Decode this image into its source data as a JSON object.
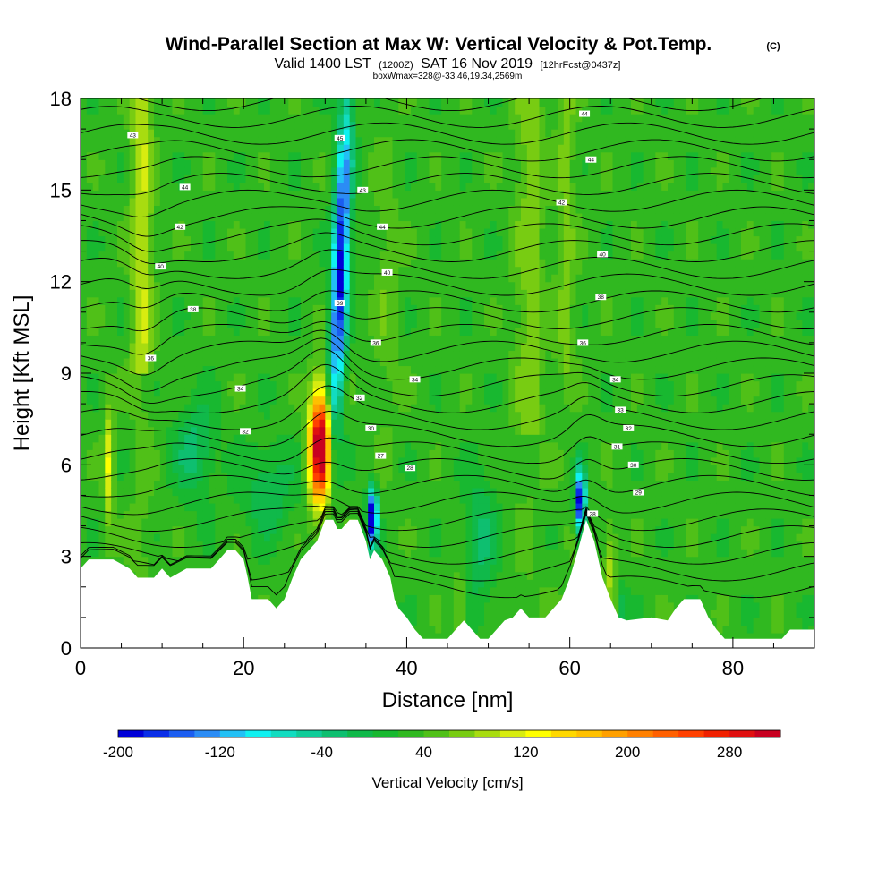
{
  "chart_data": {
    "type": "heatmap",
    "title": "Wind-Parallel Section at Max W: Vertical Velocity & Pot.Temp.",
    "title_mark": "(C)",
    "subtitle_pre": "Valid 1400 LST",
    "subtitle_utc": "(1200Z)",
    "subtitle_date": "SAT 16 Nov 2019",
    "subtitle_fcst": "[12hrFcst@0437z]",
    "subtitle2": "boxWmax=328@-33.46,19.34,2569m",
    "xlabel": "Distance [nm]",
    "ylabel": "Height [Kft MSL]",
    "xlim": [
      0,
      90
    ],
    "ylim": [
      0,
      18
    ],
    "xticks": [
      0,
      20,
      40,
      60,
      80
    ],
    "yticks": [
      0,
      3,
      6,
      9,
      12,
      15,
      18
    ],
    "colorbar": {
      "label": "Vertical Velocity [cm/s]",
      "min": -200,
      "max": 320,
      "step": 20,
      "ticks": [
        -200,
        -120,
        -40,
        40,
        120,
        200,
        280
      ],
      "colors": [
        "#0000d8",
        "#0a2ee8",
        "#1b5df0",
        "#2b8cf5",
        "#22c0f5",
        "#10f0f0",
        "#12dcc0",
        "#10cc99",
        "#0ebf70",
        "#10b94a",
        "#18b830",
        "#30b820",
        "#50c018",
        "#78cc12",
        "#a8dc10",
        "#d8ec10",
        "#ffff00",
        "#ffd800",
        "#ffc000",
        "#ffa000",
        "#ff8000",
        "#ff6000",
        "#ff4000",
        "#f02000",
        "#e01010",
        "#c80020"
      ]
    },
    "terrain_kft": [
      [
        0,
        2.6
      ],
      [
        1,
        2.9
      ],
      [
        4,
        2.9
      ],
      [
        6,
        2.6
      ],
      [
        7,
        2.3
      ],
      [
        9,
        2.3
      ],
      [
        10,
        2.6
      ],
      [
        11,
        2.3
      ],
      [
        13,
        2.6
      ],
      [
        15,
        2.6
      ],
      [
        16,
        2.6
      ],
      [
        17,
        2.9
      ],
      [
        18,
        3.2
      ],
      [
        19,
        3.2
      ],
      [
        20,
        2.9
      ],
      [
        20.5,
        2.3
      ],
      [
        21,
        1.6
      ],
      [
        23,
        1.6
      ],
      [
        24,
        1.3
      ],
      [
        25,
        1.6
      ],
      [
        26,
        2.3
      ],
      [
        27,
        2.9
      ],
      [
        28,
        3.2
      ],
      [
        29,
        3.5
      ],
      [
        30,
        4.2
      ],
      [
        31,
        4.2
      ],
      [
        31.5,
        3.9
      ],
      [
        32,
        3.9
      ],
      [
        33,
        4.2
      ],
      [
        34,
        4.2
      ],
      [
        35,
        3.5
      ],
      [
        35.5,
        2.9
      ],
      [
        36,
        3.2
      ],
      [
        37,
        2.9
      ],
      [
        38,
        2.3
      ],
      [
        38.5,
        1.6
      ],
      [
        39,
        1.3
      ],
      [
        40,
        1.0
      ],
      [
        41,
        0.6
      ],
      [
        42,
        0.3
      ],
      [
        45,
        0.3
      ],
      [
        46,
        0.6
      ],
      [
        47,
        0.9
      ],
      [
        48,
        0.6
      ],
      [
        49,
        0.3
      ],
      [
        50,
        0.3
      ],
      [
        51,
        0.6
      ],
      [
        52,
        0.9
      ],
      [
        53,
        1.0
      ],
      [
        54,
        1.3
      ],
      [
        55,
        1.0
      ],
      [
        57,
        1.0
      ],
      [
        58,
        1.3
      ],
      [
        59,
        1.6
      ],
      [
        60,
        2.3
      ],
      [
        61,
        3.2
      ],
      [
        62,
        4.2
      ],
      [
        63,
        3.5
      ],
      [
        64,
        2.3
      ],
      [
        65,
        1.6
      ],
      [
        66,
        1.0
      ],
      [
        67,
        0.9
      ],
      [
        70,
        1.0
      ],
      [
        72,
        0.9
      ],
      [
        73,
        1.3
      ],
      [
        74,
        1.6
      ],
      [
        76,
        1.6
      ],
      [
        77,
        1.0
      ],
      [
        78,
        0.6
      ],
      [
        79,
        0.3
      ],
      [
        86,
        0.3
      ],
      [
        87,
        0.6
      ],
      [
        90,
        0.6
      ]
    ],
    "theta_labels": [
      {
        "x": 6.4,
        "y": 16.8,
        "text": "43"
      },
      {
        "x": 12.8,
        "y": 15.1,
        "text": "44"
      },
      {
        "x": 12.2,
        "y": 13.8,
        "text": "42"
      },
      {
        "x": 9.8,
        "y": 12.5,
        "text": "40"
      },
      {
        "x": 13.8,
        "y": 11.1,
        "text": "38"
      },
      {
        "x": 8.6,
        "y": 9.5,
        "text": "36"
      },
      {
        "x": 19.6,
        "y": 8.5,
        "text": "34"
      },
      {
        "x": 20.2,
        "y": 7.1,
        "text": "32"
      },
      {
        "x": 31.8,
        "y": 16.7,
        "text": "45"
      },
      {
        "x": 34.6,
        "y": 15.0,
        "text": "43"
      },
      {
        "x": 37.0,
        "y": 13.8,
        "text": "44"
      },
      {
        "x": 37.6,
        "y": 12.3,
        "text": "40"
      },
      {
        "x": 31.8,
        "y": 11.3,
        "text": "39"
      },
      {
        "x": 36.2,
        "y": 10.0,
        "text": "36"
      },
      {
        "x": 41.0,
        "y": 8.8,
        "text": "34"
      },
      {
        "x": 34.2,
        "y": 8.2,
        "text": "32"
      },
      {
        "x": 35.6,
        "y": 7.2,
        "text": "30"
      },
      {
        "x": 36.8,
        "y": 6.3,
        "text": "27"
      },
      {
        "x": 40.4,
        "y": 5.9,
        "text": "28"
      },
      {
        "x": 61.8,
        "y": 17.5,
        "text": "44"
      },
      {
        "x": 62.6,
        "y": 16.0,
        "text": "44"
      },
      {
        "x": 59.0,
        "y": 14.6,
        "text": "42"
      },
      {
        "x": 64.0,
        "y": 12.9,
        "text": "40"
      },
      {
        "x": 63.8,
        "y": 11.5,
        "text": "38"
      },
      {
        "x": 61.6,
        "y": 10.0,
        "text": "36"
      },
      {
        "x": 65.6,
        "y": 8.8,
        "text": "34"
      },
      {
        "x": 66.2,
        "y": 7.8,
        "text": "33"
      },
      {
        "x": 67.2,
        "y": 7.2,
        "text": "32"
      },
      {
        "x": 65.8,
        "y": 6.6,
        "text": "31"
      },
      {
        "x": 67.8,
        "y": 6.0,
        "text": "30"
      },
      {
        "x": 68.4,
        "y": 5.1,
        "text": "29"
      },
      {
        "x": 62.8,
        "y": 4.4,
        "text": "28"
      }
    ]
  }
}
